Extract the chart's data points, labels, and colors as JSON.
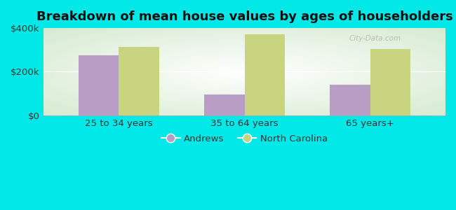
{
  "title": "Breakdown of mean house values by ages of householders",
  "categories": [
    "25 to 34 years",
    "35 to 64 years",
    "65 years+"
  ],
  "andrews_values": [
    275000,
    95000,
    140000
  ],
  "nc_values": [
    315000,
    370000,
    305000
  ],
  "andrews_color": "#b89ec4",
  "nc_color": "#c8d480",
  "background_color": "#00e8e8",
  "plot_bg_top": "#d8ecd0",
  "plot_bg_bottom": "#f5faf0",
  "ylim": [
    0,
    400000
  ],
  "yticks": [
    0,
    200000,
    400000
  ],
  "ytick_labels": [
    "$0",
    "$200k",
    "$400k"
  ],
  "legend_andrews": "Andrews",
  "legend_nc": "North Carolina",
  "bar_width": 0.32,
  "title_fontsize": 13,
  "tick_fontsize": 9.5,
  "legend_fontsize": 9.5,
  "watermark": "City-Data.com"
}
